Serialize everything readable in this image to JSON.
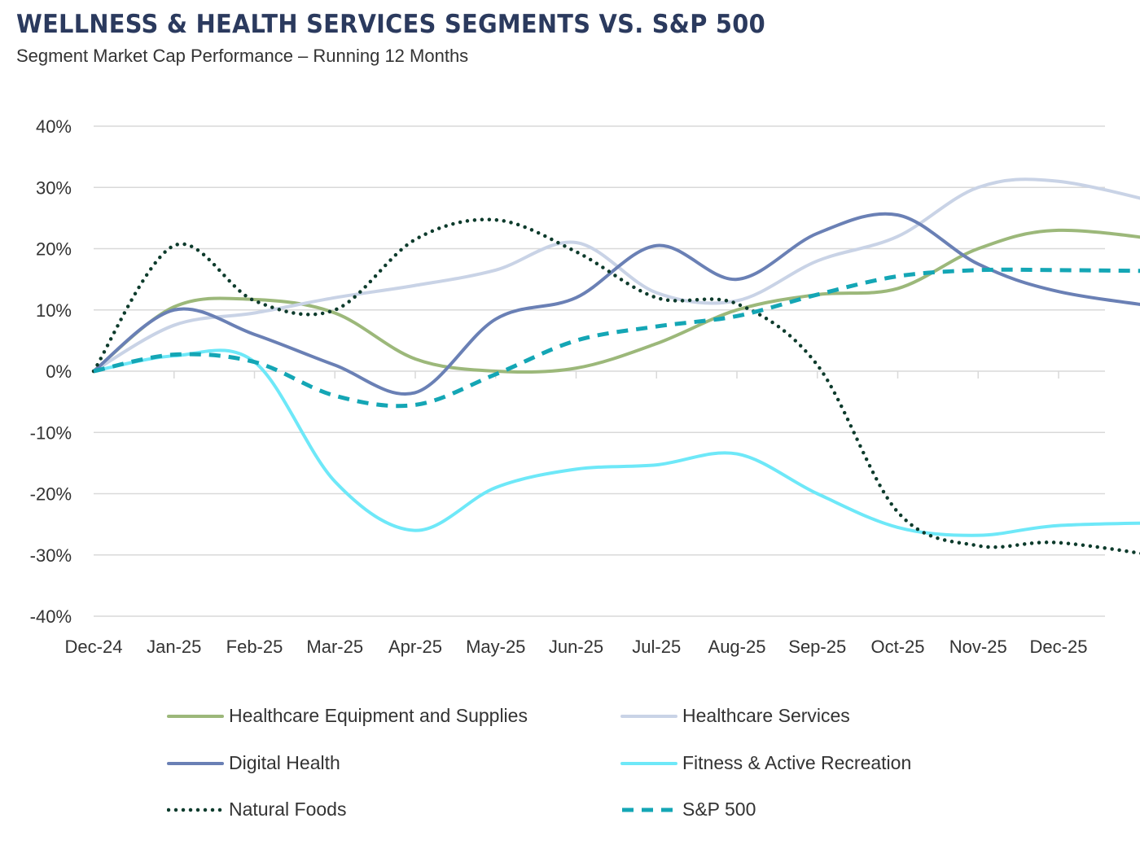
{
  "chart_data": {
    "type": "line",
    "title": "WELLNESS & HEALTH SERVICES SEGMENTS VS. S&P 500",
    "subtitle": "Segment Market Cap Performance – Running 12 Months",
    "xlabel": "",
    "ylabel": "",
    "x_tick_labels": [
      "Dec-24",
      "Jan-25",
      "Feb-25",
      "Mar-25",
      "Apr-25",
      "May-25",
      "Jun-25",
      "Jul-25",
      "Aug-25",
      "Sep-25",
      "Oct-25",
      "Nov-25",
      "Dec-25"
    ],
    "x": [
      "2024-12-01",
      "2025-01-01",
      "2025-02-01",
      "2025-03-01",
      "2025-04-01",
      "2025-05-01",
      "2025-06-01",
      "2025-07-01",
      "2025-08-01",
      "2025-09-01",
      "2025-10-01",
      "2025-11-01",
      "2025-12-01",
      "2026-01-18"
    ],
    "y_ticks": [
      40,
      30,
      20,
      10,
      0,
      -10,
      -20,
      -30,
      -40
    ],
    "y_tick_labels": [
      "40%",
      "30%",
      "20%",
      "10%",
      "0%",
      "-10%",
      "-20%",
      "-30%",
      "-40%"
    ],
    "ylim": [
      -40,
      40
    ],
    "grid": "horizontal",
    "legend_position": "bottom",
    "series": [
      {
        "name": "Healthcare Equipment and Supplies",
        "color": "#9cb87a",
        "style": "solid",
        "values": [
          0,
          10.5,
          11.7,
          9.5,
          2,
          0,
          0.5,
          4.5,
          10,
          12.5,
          13.5,
          20,
          23,
          21
        ]
      },
      {
        "name": "Healthcare Services",
        "color": "#c9d3e6",
        "style": "solid",
        "values": [
          0,
          7.5,
          9.5,
          12,
          14,
          16.5,
          21,
          12.8,
          11.5,
          18,
          22,
          30,
          31,
          26.5
        ]
      },
      {
        "name": "Digital Health",
        "color": "#6a80b5",
        "style": "solid",
        "values": [
          0,
          10,
          6,
          1,
          -3.5,
          8.5,
          12,
          20.5,
          15,
          22.5,
          25.5,
          17.5,
          13,
          10
        ]
      },
      {
        "name": "Fitness & Active Recreation",
        "color": "#6ee8f8",
        "style": "solid",
        "values": [
          0,
          2.5,
          1.5,
          -18,
          -26,
          -19,
          -16,
          -15.3,
          -13.5,
          -20,
          -25.5,
          -26.8,
          -25.2,
          -24.7
        ]
      },
      {
        "name": "Natural Foods",
        "color": "#0d3b2c",
        "style": "dotted",
        "values": [
          0,
          20.5,
          11.5,
          10,
          21.5,
          24.7,
          19.5,
          12,
          11,
          1,
          -23,
          -28.5,
          -28,
          -30.8
        ]
      },
      {
        "name": "S&P 500",
        "color": "#14a6b5",
        "style": "dashed",
        "values": [
          0,
          2.7,
          1.5,
          -4,
          -5.5,
          -0.5,
          5,
          7.3,
          9,
          12.5,
          15.5,
          16.5,
          16.5,
          16.3
        ]
      }
    ]
  }
}
